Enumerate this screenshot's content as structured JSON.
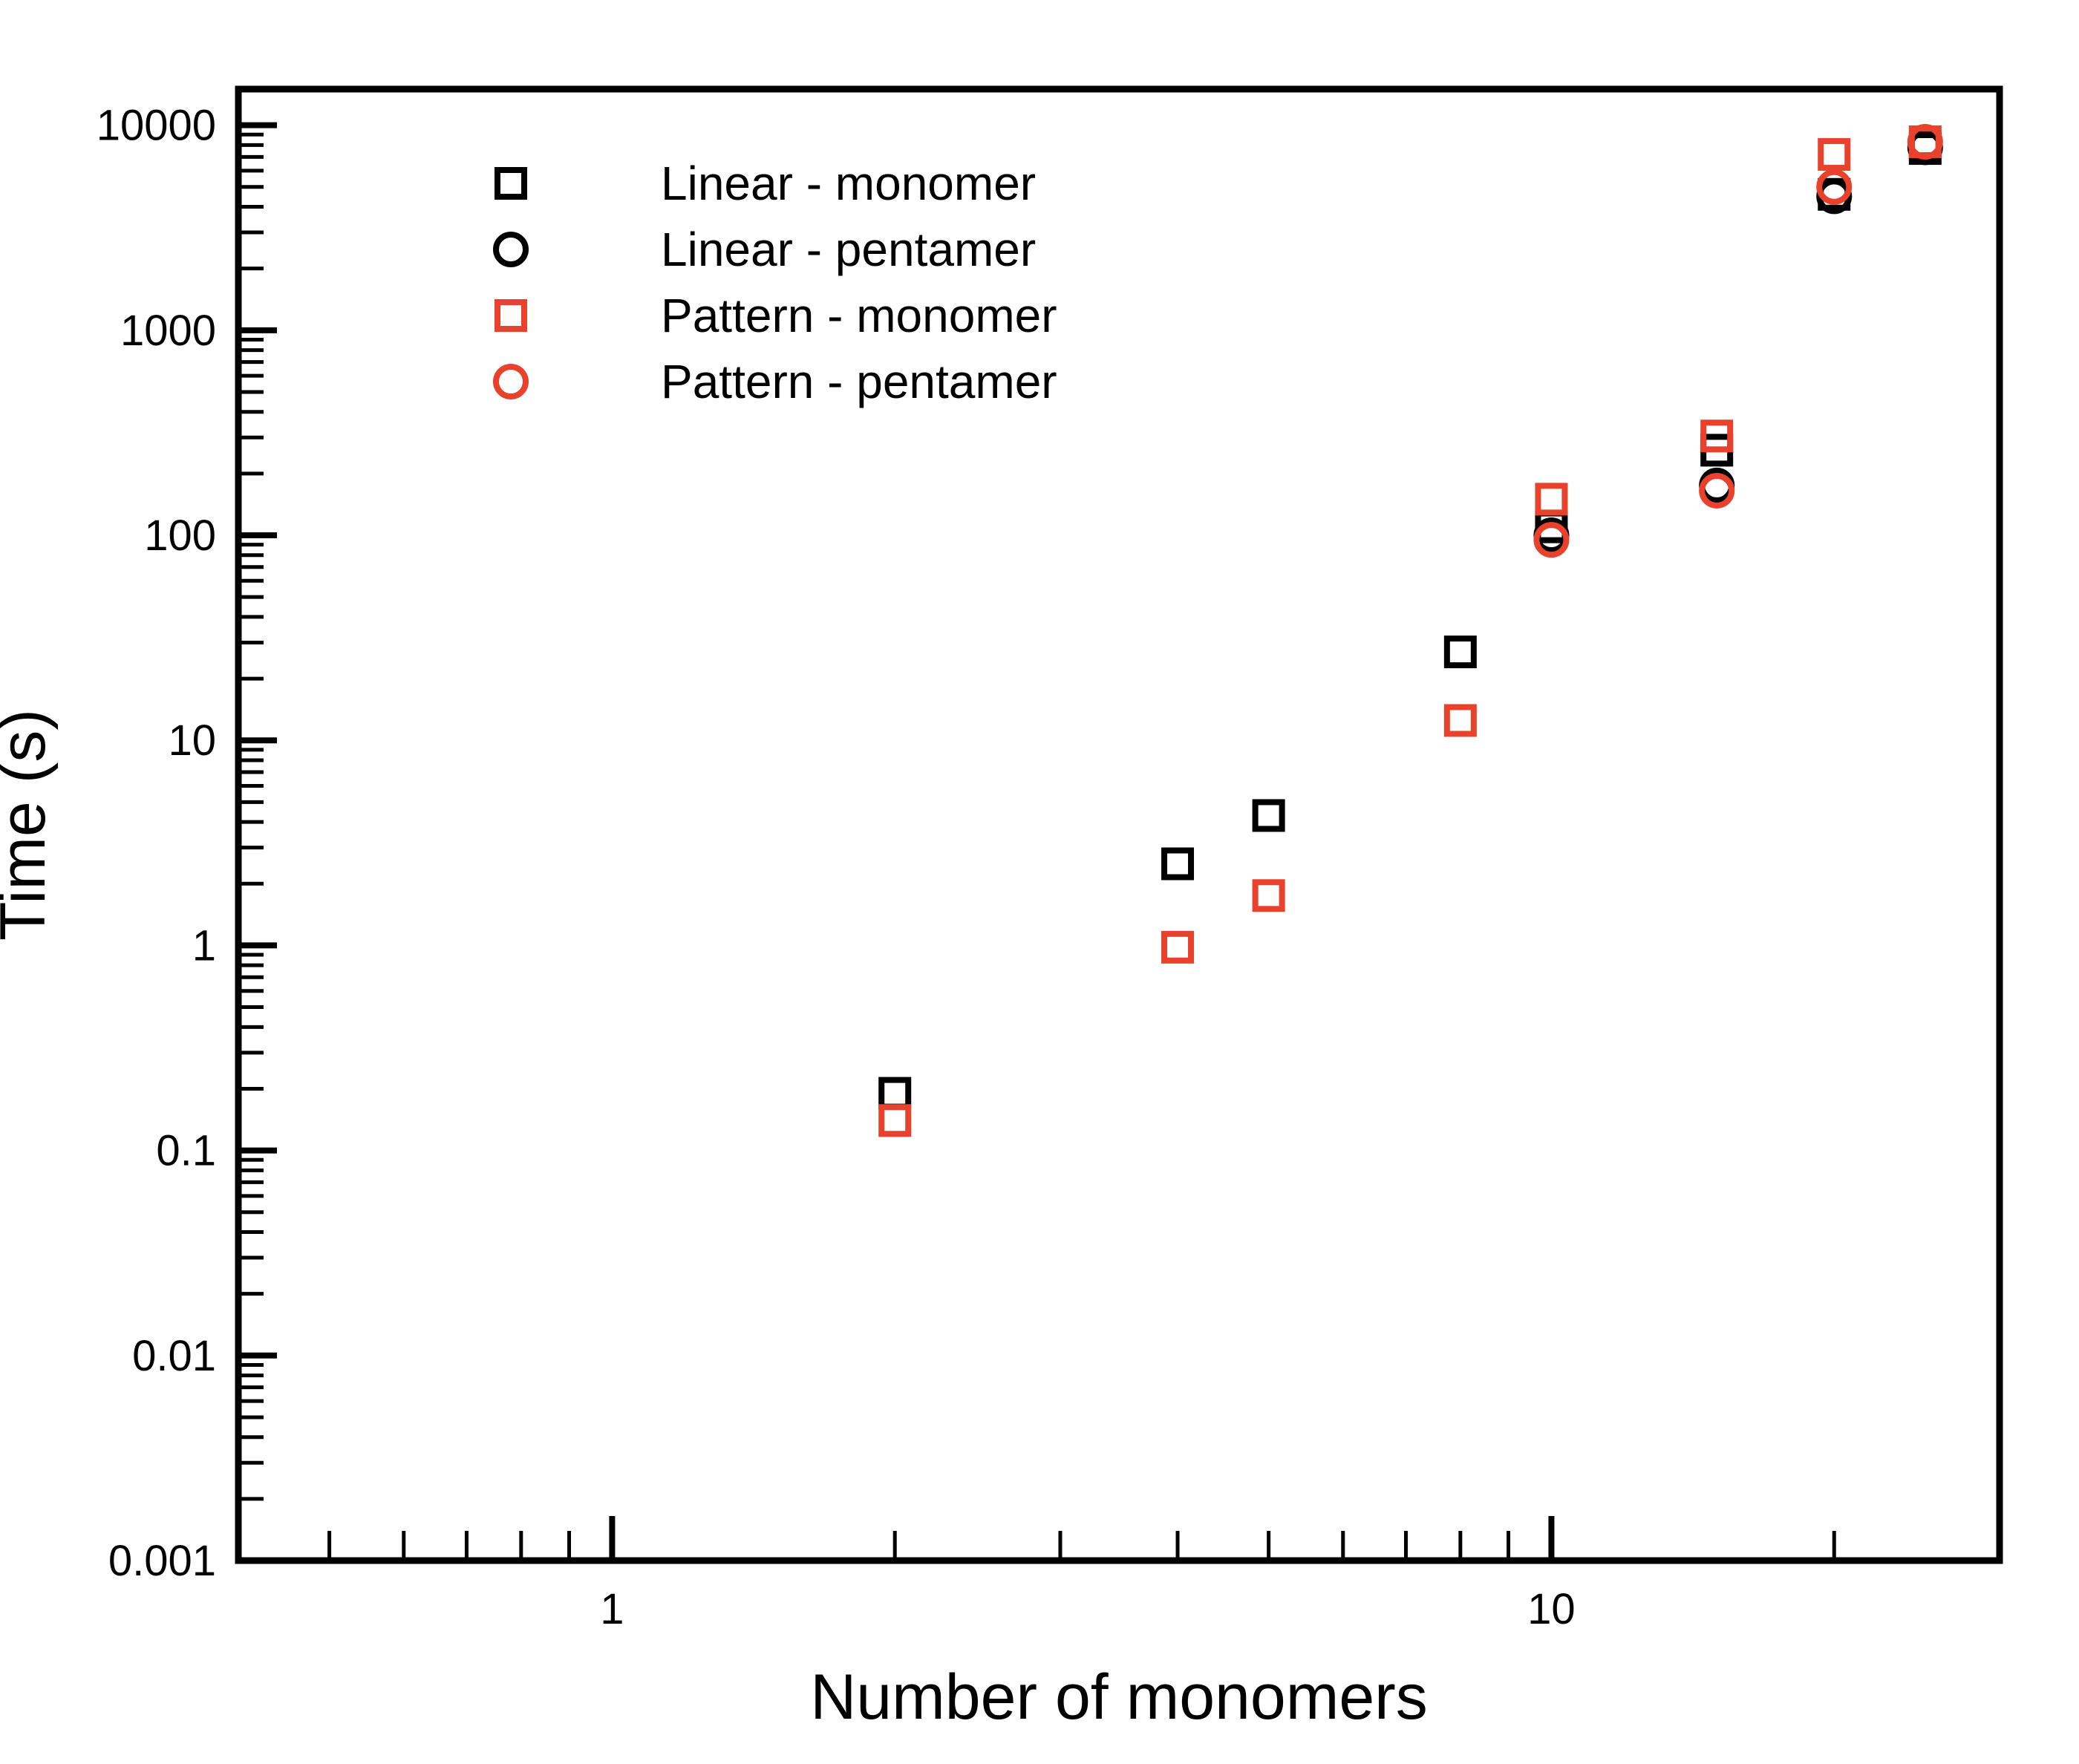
{
  "chart_data": {
    "type": "scatter",
    "title": "",
    "xlabel": "Number of monomers",
    "ylabel": "Time (s)",
    "xscale": "log",
    "yscale": "log",
    "xlim": [
      0.4,
      30
    ],
    "ylim": [
      0.001,
      15000
    ],
    "xticks": [
      {
        "value": 1,
        "label": "1"
      },
      {
        "value": 10,
        "label": "10"
      }
    ],
    "yticks": [
      {
        "value": 0.001,
        "label": "0.001"
      },
      {
        "value": 0.01,
        "label": "0.01"
      },
      {
        "value": 0.1,
        "label": "0.1"
      },
      {
        "value": 1,
        "label": "1"
      },
      {
        "value": 10,
        "label": "10"
      },
      {
        "value": 100,
        "label": "100"
      },
      {
        "value": 1000,
        "label": "1000"
      },
      {
        "value": 10000,
        "label": "10000"
      }
    ],
    "grid": false,
    "legend_position": "top-left",
    "series": [
      {
        "name": "Linear - monomer",
        "marker": "square",
        "color": "#000000",
        "points": [
          [
            2,
            0.19
          ],
          [
            4,
            2.5
          ],
          [
            5,
            4.3
          ],
          [
            8,
            27
          ],
          [
            10,
            110
          ],
          [
            15,
            260
          ],
          [
            20,
            4600
          ],
          [
            25,
            7700
          ]
        ]
      },
      {
        "name": "Linear - pentamer",
        "marker": "circle",
        "color": "#000000",
        "points": [
          [
            10,
            100
          ],
          [
            15,
            175
          ],
          [
            20,
            4500
          ],
          [
            25,
            7800
          ]
        ]
      },
      {
        "name": "Pattern - monomer",
        "marker": "square",
        "color": "#e8412c",
        "points": [
          [
            2,
            0.14
          ],
          [
            4,
            0.98
          ],
          [
            5,
            1.75
          ],
          [
            8,
            12.5
          ],
          [
            10,
            150
          ],
          [
            15,
            305
          ],
          [
            20,
            7200
          ],
          [
            25,
            8300
          ]
        ]
      },
      {
        "name": "Pattern - pentamer",
        "marker": "circle",
        "color": "#e8412c",
        "points": [
          [
            10,
            95
          ],
          [
            15,
            165
          ],
          [
            20,
            5000
          ],
          [
            25,
            8300
          ]
        ]
      }
    ]
  }
}
